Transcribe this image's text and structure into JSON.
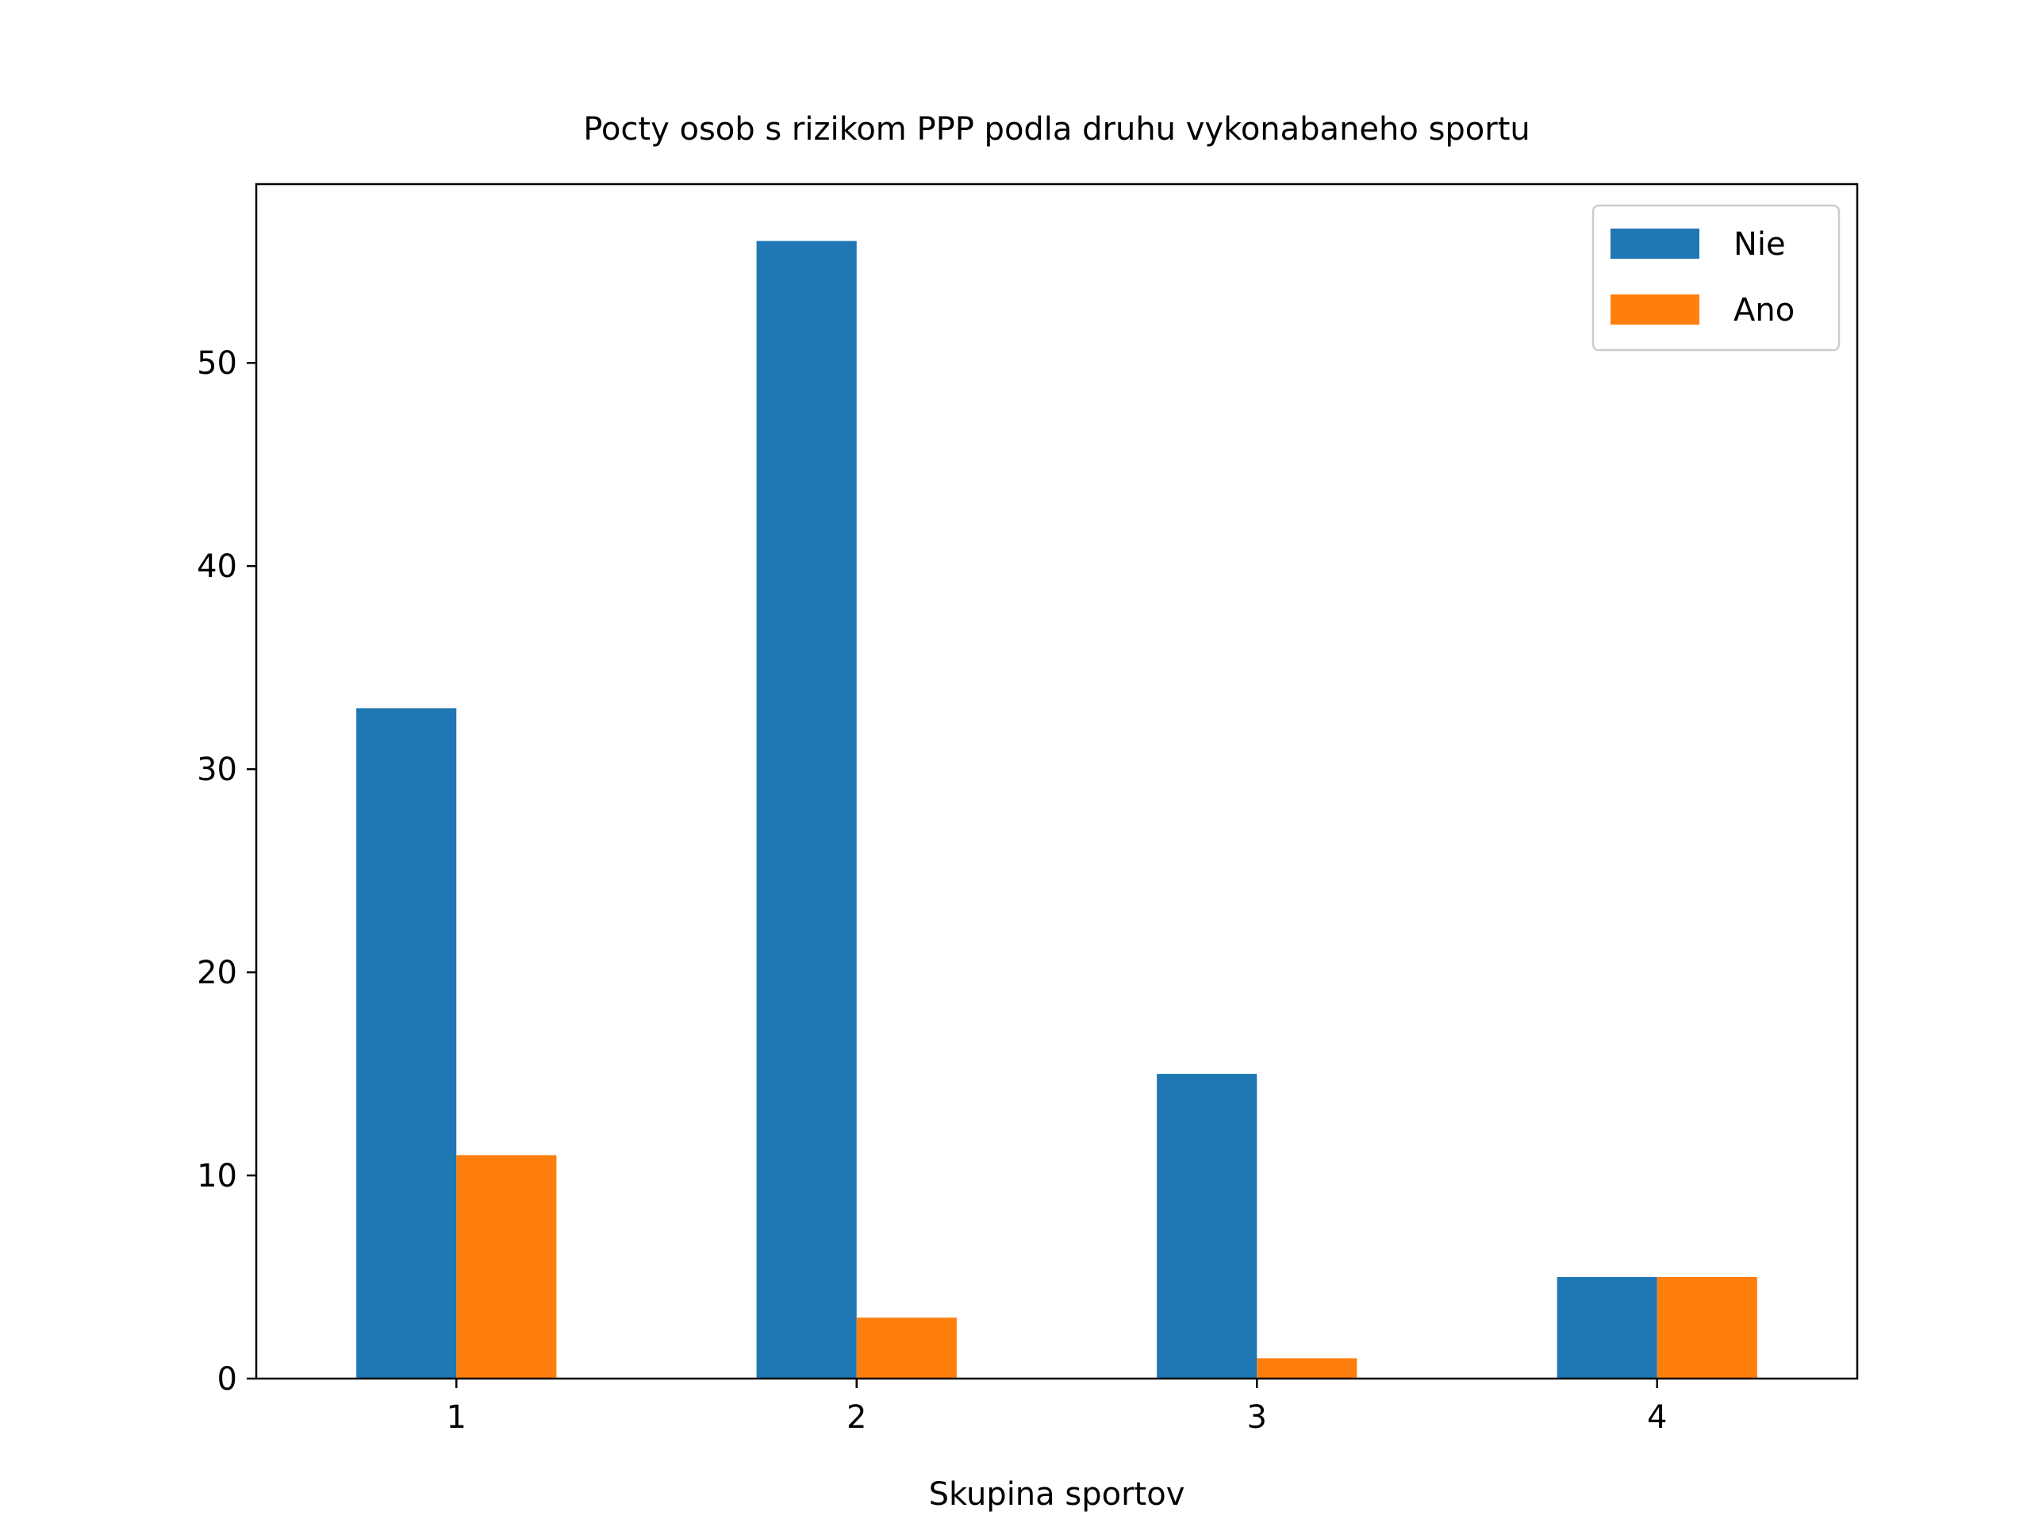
{
  "chart_data": {
    "type": "bar",
    "title": "Pocty osob s rizikom PPP podla druhu vykonabaneho sportu",
    "xlabel": "Skupina sportov",
    "ylabel": "",
    "categories": [
      "1",
      "2",
      "3",
      "4"
    ],
    "series": [
      {
        "name": "Nie",
        "values": [
          33,
          56,
          15,
          5
        ],
        "color": "#1f77b4"
      },
      {
        "name": "Ano",
        "values": [
          11,
          3,
          1,
          5
        ],
        "color": "#ff7f0e"
      }
    ],
    "ylim": [
      0,
      58.8
    ],
    "yticks": [
      0,
      10,
      20,
      30,
      40,
      50
    ],
    "grid": false,
    "legend_position": "top-right"
  }
}
